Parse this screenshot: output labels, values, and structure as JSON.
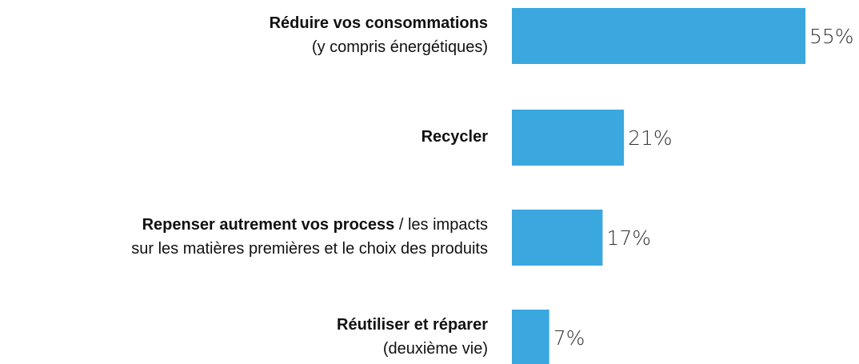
{
  "chart_data": {
    "type": "barh",
    "categories": [
      [
        [
          {
            "text": "Réduire vos consommations",
            "bold": true
          }
        ],
        [
          {
            "text": "(y compris énergétiques)",
            "bold": false
          }
        ]
      ],
      [
        [
          {
            "text": "Recycler",
            "bold": true
          }
        ]
      ],
      [
        [
          {
            "text": "Repenser autrement vos process",
            "bold": true
          },
          {
            "text": " / les impacts",
            "bold": false
          }
        ],
        [
          {
            "text": "sur les matières premières et le choix des produits",
            "bold": false
          }
        ]
      ],
      [
        [
          {
            "text": "Réutiliser et réparer",
            "bold": true
          }
        ],
        [
          {
            "text": "(deuxième vie)",
            "bold": false
          }
        ]
      ]
    ],
    "values": [
      55,
      21,
      17,
      7
    ],
    "value_labels": [
      "55%",
      "21%",
      "17%",
      "7%"
    ],
    "color": "#3ba7df"
  }
}
